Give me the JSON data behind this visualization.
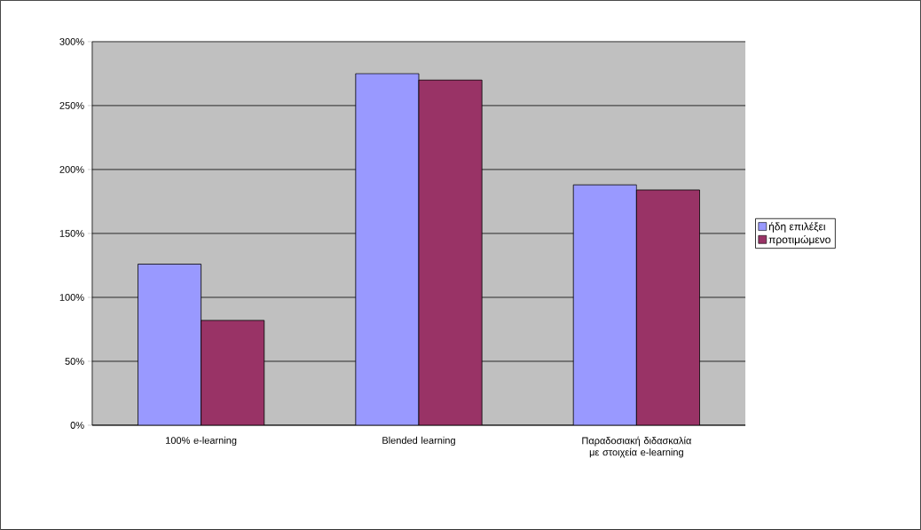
{
  "chart_data": {
    "type": "bar",
    "categories": [
      "100% e-learning",
      "Blended learning",
      "Παραδοσιακή διδασκαλία με στοιχεία e-learning"
    ],
    "series": [
      {
        "name": "ήδη επιλέξει",
        "color": "#9999ff",
        "values": [
          126,
          275,
          188
        ]
      },
      {
        "name": "προτιμώμενο",
        "color": "#993366",
        "values": [
          82,
          270,
          184
        ]
      }
    ],
    "ylim": [
      0,
      300
    ],
    "yticks": [
      {
        "value": 0,
        "label": "0%"
      },
      {
        "value": 50,
        "label": "50%"
      },
      {
        "value": 100,
        "label": "100%"
      },
      {
        "value": 150,
        "label": "150%"
      },
      {
        "value": 200,
        "label": "200%"
      },
      {
        "value": 250,
        "label": "250%"
      },
      {
        "value": 300,
        "label": "300%"
      }
    ],
    "grid": "y",
    "legend": "right"
  }
}
